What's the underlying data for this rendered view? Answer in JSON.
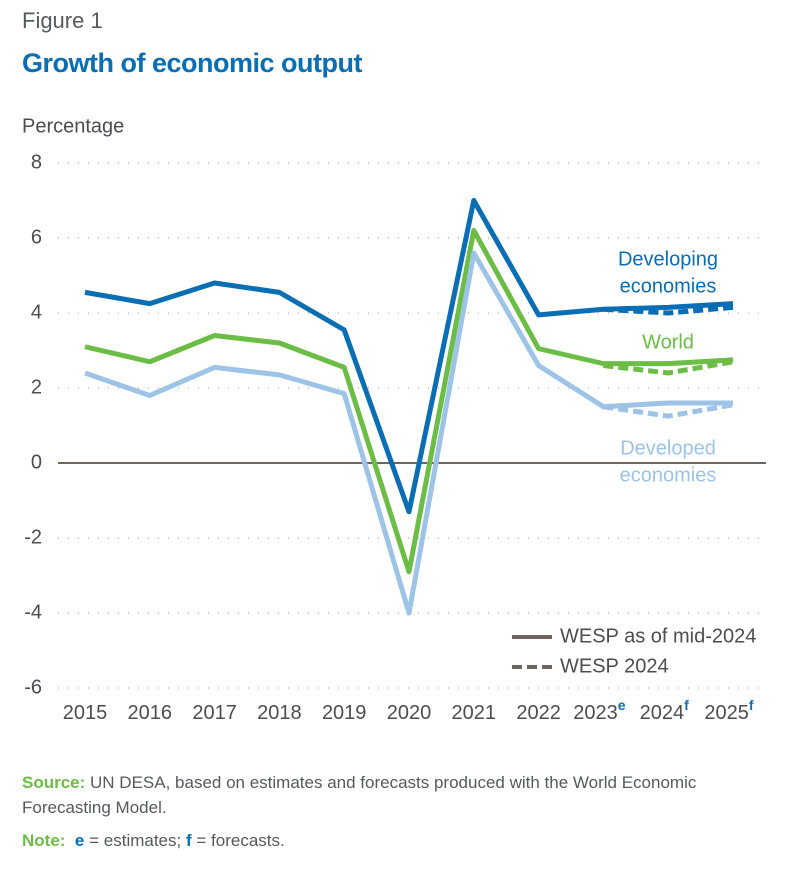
{
  "figure_label": "Figure 1",
  "chart_data": {
    "type": "line",
    "title": "Growth of economic output",
    "y_axis_label": "Percentage",
    "categories": [
      "2015",
      "2016",
      "2017",
      "2018",
      "2019",
      "2020",
      "2021",
      "2022",
      "2023",
      "2024",
      "2025"
    ],
    "category_superscripts": [
      null,
      null,
      null,
      null,
      null,
      null,
      null,
      null,
      "e",
      "f",
      "f"
    ],
    "ylim": [
      -6,
      8
    ],
    "yticks": [
      -6,
      -4,
      -2,
      0,
      2,
      4,
      6,
      8
    ],
    "grid": true,
    "legend_position": "lower right",
    "legend": [
      {
        "label": "WESP as of mid-2024",
        "dashed": false
      },
      {
        "label": "WESP 2024",
        "dashed": true
      }
    ],
    "series": [
      {
        "label": [
          "Developing",
          "economies"
        ],
        "color": "#0a6eb4",
        "values": [
          4.55,
          4.25,
          4.8,
          4.55,
          3.55,
          -1.3,
          7.0,
          3.95,
          4.1,
          4.15,
          4.25
        ],
        "values_wesp2024": [
          null,
          null,
          null,
          null,
          null,
          null,
          null,
          null,
          4.1,
          4.0,
          4.15
        ]
      },
      {
        "label": [
          "World"
        ],
        "color": "#6cbd45",
        "values": [
          3.1,
          2.7,
          3.4,
          3.2,
          2.55,
          -2.9,
          6.2,
          3.05,
          2.65,
          2.65,
          2.75
        ],
        "values_wesp2024": [
          null,
          null,
          null,
          null,
          null,
          null,
          null,
          null,
          2.6,
          2.4,
          2.7
        ]
      },
      {
        "label": [
          "Developed",
          "economies"
        ],
        "color": "#9dc3e6",
        "values": [
          2.4,
          1.8,
          2.55,
          2.35,
          1.85,
          -4.0,
          5.6,
          2.6,
          1.5,
          1.6,
          1.6
        ],
        "values_wesp2024": [
          null,
          null,
          null,
          null,
          null,
          null,
          null,
          null,
          1.5,
          1.25,
          1.55
        ]
      }
    ]
  },
  "source": {
    "label": "Source:",
    "text": "UN DESA, based on estimates and forecasts produced with the World Economic Forecasting Model."
  },
  "note": {
    "label": "Note:",
    "items": [
      {
        "key": "e",
        "text": "= estimates;"
      },
      {
        "key": "f",
        "text": "= forecasts."
      }
    ]
  }
}
